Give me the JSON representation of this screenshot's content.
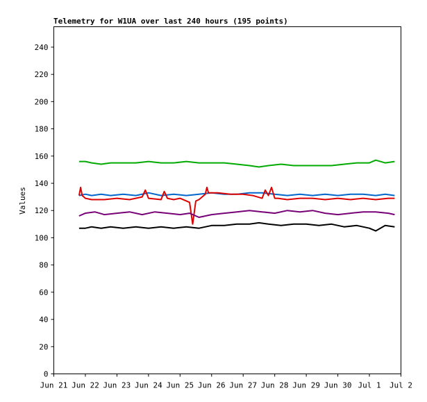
{
  "chart_data": {
    "type": "line",
    "title": "Telemetry for W1UA over last 240 hours (195 points)",
    "xlabel": "",
    "ylabel": "Values",
    "ylim": [
      0,
      255
    ],
    "yticks": [
      0,
      20,
      40,
      60,
      80,
      100,
      120,
      140,
      160,
      180,
      200,
      220,
      240
    ],
    "xlim": [
      0,
      11
    ],
    "xticks": [
      {
        "x": 0,
        "label": "Jun 21"
      },
      {
        "x": 1,
        "label": "Jun 22"
      },
      {
        "x": 2,
        "label": "Jun 23"
      },
      {
        "x": 3,
        "label": "Jun 24"
      },
      {
        "x": 4,
        "label": "Jun 25"
      },
      {
        "x": 5,
        "label": "Jun 26"
      },
      {
        "x": 6,
        "label": "Jun 27"
      },
      {
        "x": 7,
        "label": "Jun 28"
      },
      {
        "x": 8,
        "label": "Jun 29"
      },
      {
        "x": 9,
        "label": "Jun 30"
      },
      {
        "x": 10,
        "label": "Jul 1"
      },
      {
        "x": 11,
        "label": "Jul 2"
      }
    ],
    "grid": false,
    "series": [
      {
        "color": "#00aa00",
        "x": [
          0.8,
          1.0,
          1.2,
          1.5,
          1.8,
          2.2,
          2.6,
          3.0,
          3.4,
          3.8,
          4.2,
          4.6,
          5.0,
          5.4,
          5.8,
          6.2,
          6.5,
          6.8,
          7.2,
          7.6,
          8.0,
          8.4,
          8.8,
          9.2,
          9.6,
          10.0,
          10.2,
          10.5,
          10.8
        ],
        "values": [
          156,
          156,
          155,
          154,
          155,
          155,
          155,
          156,
          155,
          155,
          156,
          155,
          155,
          155,
          154,
          153,
          152,
          153,
          154,
          153,
          153,
          153,
          153,
          154,
          155,
          155,
          157,
          155,
          156
        ]
      },
      {
        "color": "#0066cc",
        "x": [
          0.8,
          1.0,
          1.2,
          1.5,
          1.8,
          2.2,
          2.6,
          3.0,
          3.4,
          3.8,
          4.2,
          4.6,
          5.0,
          5.4,
          5.8,
          6.2,
          6.6,
          7.0,
          7.4,
          7.8,
          8.2,
          8.6,
          9.0,
          9.4,
          9.8,
          10.2,
          10.5,
          10.8
        ],
        "values": [
          131,
          132,
          131,
          132,
          131,
          132,
          131,
          133,
          131,
          132,
          131,
          132,
          133,
          132,
          132,
          133,
          133,
          132,
          131,
          132,
          131,
          132,
          131,
          132,
          132,
          131,
          132,
          131
        ]
      },
      {
        "color": "#dd0000",
        "x": [
          0.8,
          0.85,
          0.9,
          1.0,
          1.2,
          1.6,
          2.0,
          2.4,
          2.8,
          2.9,
          3.0,
          3.4,
          3.5,
          3.6,
          3.8,
          4.0,
          4.3,
          4.4,
          4.5,
          4.6,
          4.8,
          4.85,
          4.9,
          5.2,
          5.6,
          6.0,
          6.3,
          6.6,
          6.7,
          6.8,
          6.9,
          7.0,
          7.1,
          7.4,
          7.8,
          8.2,
          8.6,
          9.0,
          9.4,
          9.8,
          10.2,
          10.6,
          10.8
        ],
        "values": [
          131,
          137,
          131,
          129,
          128,
          128,
          129,
          128,
          130,
          135,
          129,
          128,
          134,
          129,
          128,
          129,
          126,
          110,
          127,
          128,
          132,
          137,
          133,
          133,
          132,
          132,
          131,
          129,
          135,
          131,
          137,
          129,
          129,
          128,
          129,
          129,
          128,
          129,
          128,
          129,
          128,
          129,
          129
        ]
      },
      {
        "color": "#770077",
        "x": [
          0.8,
          1.0,
          1.3,
          1.6,
          2.0,
          2.4,
          2.8,
          3.2,
          3.6,
          4.0,
          4.3,
          4.6,
          5.0,
          5.4,
          5.8,
          6.2,
          6.6,
          7.0,
          7.4,
          7.8,
          8.2,
          8.6,
          9.0,
          9.4,
          9.8,
          10.2,
          10.6,
          10.8
        ],
        "values": [
          116,
          118,
          119,
          117,
          118,
          119,
          117,
          119,
          118,
          117,
          118,
          115,
          117,
          118,
          119,
          120,
          119,
          118,
          120,
          119,
          120,
          118,
          117,
          118,
          119,
          119,
          118,
          117
        ]
      },
      {
        "color": "#000000",
        "x": [
          0.8,
          1.0,
          1.2,
          1.5,
          1.8,
          2.2,
          2.6,
          3.0,
          3.4,
          3.8,
          4.2,
          4.6,
          5.0,
          5.4,
          5.8,
          6.2,
          6.5,
          6.8,
          7.2,
          7.6,
          8.0,
          8.4,
          8.8,
          9.2,
          9.6,
          10.0,
          10.2,
          10.5,
          10.8
        ],
        "values": [
          107,
          107,
          108,
          107,
          108,
          107,
          108,
          107,
          108,
          107,
          108,
          107,
          109,
          109,
          110,
          110,
          111,
          110,
          109,
          110,
          110,
          109,
          110,
          108,
          109,
          107,
          105,
          109,
          108
        ]
      }
    ]
  }
}
